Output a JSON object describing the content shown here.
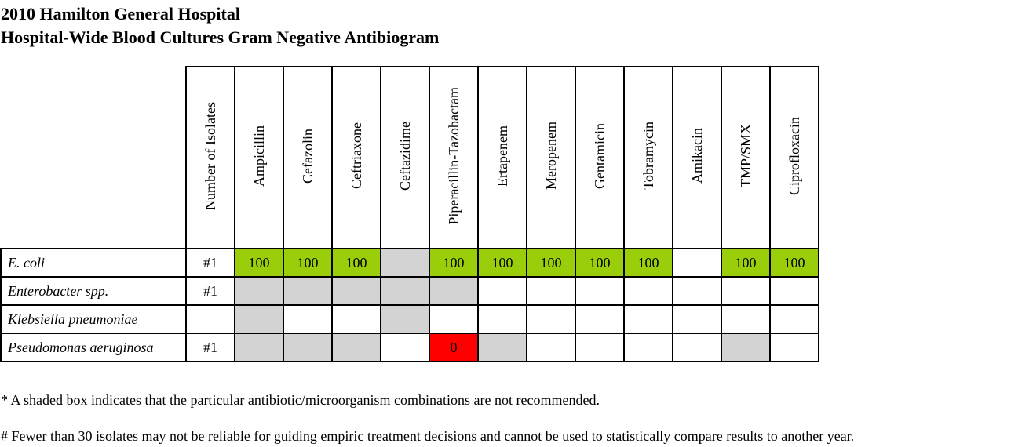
{
  "title": {
    "line1": "2010 Hamilton General Hospital",
    "line2": "Hospital-Wide Blood Cultures Gram Negative Antibiogram"
  },
  "table": {
    "columns": [
      "Number of Isolates",
      "Ampicillin",
      "Cefazolin",
      "Ceftriaxone",
      "Ceftazidime",
      "Piperacillin-Tazobactam",
      "Ertapenem",
      "Meropenem",
      "Gentamicin",
      "Tobramycin",
      "Amikacin",
      "TMP/SMX",
      "Ciprofloxacin"
    ],
    "rows": [
      {
        "organism": "E. coli",
        "isolates": "#1",
        "cells": [
          {
            "value": "100",
            "shade": "green"
          },
          {
            "value": "100",
            "shade": "green"
          },
          {
            "value": "100",
            "shade": "green"
          },
          {
            "value": "",
            "shade": "grey"
          },
          {
            "value": "100",
            "shade": "green"
          },
          {
            "value": "100",
            "shade": "green"
          },
          {
            "value": "100",
            "shade": "green"
          },
          {
            "value": "100",
            "shade": "green"
          },
          {
            "value": "100",
            "shade": "green"
          },
          {
            "value": "",
            "shade": "none"
          },
          {
            "value": "100",
            "shade": "green"
          },
          {
            "value": "100",
            "shade": "green"
          }
        ]
      },
      {
        "organism": "Enterobacter spp.",
        "isolates": "#1",
        "cells": [
          {
            "value": "",
            "shade": "grey"
          },
          {
            "value": "",
            "shade": "grey"
          },
          {
            "value": "",
            "shade": "grey"
          },
          {
            "value": "",
            "shade": "grey"
          },
          {
            "value": "",
            "shade": "grey"
          },
          {
            "value": "",
            "shade": "none"
          },
          {
            "value": "",
            "shade": "none"
          },
          {
            "value": "",
            "shade": "none"
          },
          {
            "value": "",
            "shade": "none"
          },
          {
            "value": "",
            "shade": "none"
          },
          {
            "value": "",
            "shade": "none"
          },
          {
            "value": "",
            "shade": "none"
          }
        ]
      },
      {
        "organism": "Klebsiella pneumoniae",
        "isolates": "",
        "cells": [
          {
            "value": "",
            "shade": "grey"
          },
          {
            "value": "",
            "shade": "none"
          },
          {
            "value": "",
            "shade": "none"
          },
          {
            "value": "",
            "shade": "grey"
          },
          {
            "value": "",
            "shade": "none"
          },
          {
            "value": "",
            "shade": "none"
          },
          {
            "value": "",
            "shade": "none"
          },
          {
            "value": "",
            "shade": "none"
          },
          {
            "value": "",
            "shade": "none"
          },
          {
            "value": "",
            "shade": "none"
          },
          {
            "value": "",
            "shade": "none"
          },
          {
            "value": "",
            "shade": "none"
          }
        ]
      },
      {
        "organism": "Pseudomonas aeruginosa",
        "isolates": "#1",
        "cells": [
          {
            "value": "",
            "shade": "grey"
          },
          {
            "value": "",
            "shade": "grey"
          },
          {
            "value": "",
            "shade": "grey"
          },
          {
            "value": "",
            "shade": "none"
          },
          {
            "value": "0",
            "shade": "red"
          },
          {
            "value": "",
            "shade": "grey"
          },
          {
            "value": "",
            "shade": "none"
          },
          {
            "value": "",
            "shade": "none"
          },
          {
            "value": "",
            "shade": "none"
          },
          {
            "value": "",
            "shade": "none"
          },
          {
            "value": "",
            "shade": "grey"
          },
          {
            "value": "",
            "shade": "none"
          }
        ]
      }
    ]
  },
  "colors": {
    "grey": "#d3d3d3",
    "green": "#9acd0a",
    "red": "#ff0000"
  },
  "footnotes": [
    "* A shaded box indicates that the particular antibiotic/microorganism combinations are not recommended.",
    "# Fewer than 30 isolates may not be reliable for guiding empiric treatment decisions and cannot be used to statistically compare results to another year."
  ]
}
